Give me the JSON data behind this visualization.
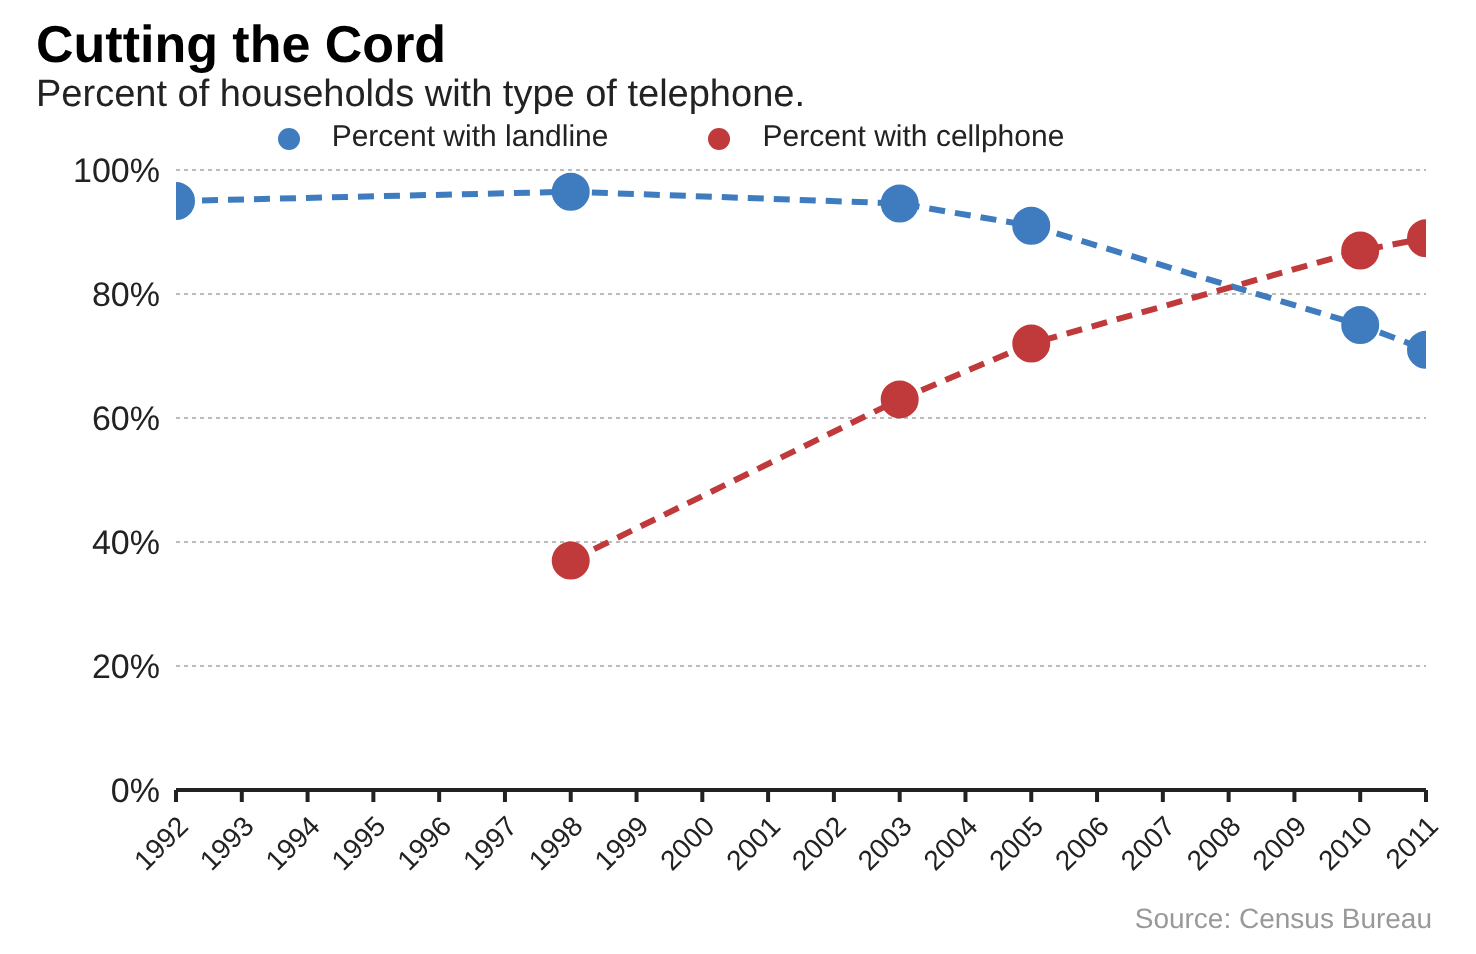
{
  "chart_data": {
    "type": "line",
    "title": "Cutting the Cord",
    "subtitle": "Percent of households with type of telephone.",
    "categories": [
      "1992",
      "1993",
      "1994",
      "1995",
      "1996",
      "1997",
      "1998",
      "1999",
      "2000",
      "2001",
      "2002",
      "2003",
      "2004",
      "2005",
      "2006",
      "2007",
      "2008",
      "2009",
      "2010",
      "2011"
    ],
    "series": [
      {
        "name": "Percent with landline",
        "color": "#3e7cbf",
        "values": [
          95,
          null,
          null,
          null,
          null,
          null,
          96.5,
          null,
          null,
          null,
          null,
          94.6,
          null,
          91,
          null,
          null,
          null,
          null,
          75,
          71
        ]
      },
      {
        "name": "Percent with cellphone",
        "color": "#c0393b",
        "values": [
          null,
          null,
          null,
          null,
          null,
          null,
          37,
          null,
          null,
          null,
          null,
          63,
          null,
          72,
          null,
          null,
          null,
          null,
          87,
          89
        ]
      }
    ],
    "ylim": [
      0,
      100
    ],
    "yticks": [
      {
        "value": 0,
        "label": "0%"
      },
      {
        "value": 20,
        "label": "20%"
      },
      {
        "value": 40,
        "label": "40%"
      },
      {
        "value": 60,
        "label": "60%"
      },
      {
        "value": 80,
        "label": "80%"
      },
      {
        "value": 100,
        "label": "100%"
      }
    ],
    "grid": "y",
    "legend": "top",
    "marker": "circle",
    "line_style": "dashed",
    "annotations": [
      "Source: Census Bureau"
    ]
  }
}
